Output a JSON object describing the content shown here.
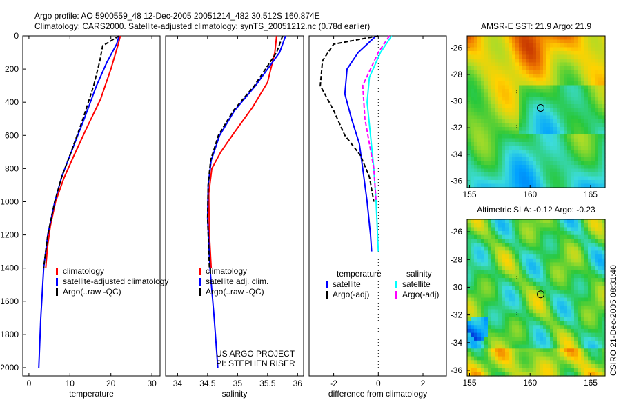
{
  "title": {
    "line1": "Argo profile: AO 5900559_48 12-Dec-2005 20051214_482 30.512S 160.874E",
    "line2": "Climatology: CARS2000. Satellite-adjusted climatology: synTS_20051212.nc (0.78d earlier)"
  },
  "side_stamp": "CSIRO 21-Dec-2005 08:31:40",
  "project_note": {
    "line1": "US ARGO PROJECT",
    "line2": "PI: STEPHEN RISER"
  },
  "colors": {
    "climatology": "#ff0000",
    "satellite": "#0000ff",
    "argo": "#000000",
    "sal_satellite": "#00ffff",
    "sal_argo": "#ff00ff"
  },
  "chart_data": [
    {
      "type": "line",
      "id": "temperature",
      "xlabel": "temperature",
      "ylabel": "",
      "xlim": [
        -1.5,
        32
      ],
      "ylim": [
        2050,
        0
      ],
      "xticks": [
        0,
        10,
        20,
        30
      ],
      "yticks": [
        0,
        200,
        400,
        600,
        800,
        1000,
        1200,
        1400,
        1600,
        1800,
        2000
      ],
      "legend": [
        "climatology",
        "satellite-adjusted climatology",
        "Argo(..raw -QC)"
      ],
      "legend_placement": "bottom-right",
      "series": [
        {
          "name": "climatology",
          "color": "#ff0000",
          "dash": false,
          "points": [
            [
              22.3,
              0
            ],
            [
              21.8,
              50
            ],
            [
              20,
              200
            ],
            [
              17.5,
              380
            ],
            [
              14,
              560
            ],
            [
              11,
              720
            ],
            [
              8.5,
              860
            ],
            [
              6.5,
              1000
            ],
            [
              5.2,
              1150
            ],
            [
              4.5,
              1280
            ],
            [
              4.1,
              1400
            ]
          ]
        },
        {
          "name": "satellite-adjusted climatology",
          "color": "#0000ff",
          "dash": false,
          "points": [
            [
              22,
              0
            ],
            [
              21.4,
              50
            ],
            [
              19,
              160
            ],
            [
              16.5,
              300
            ],
            [
              13.5,
              500
            ],
            [
              10.5,
              690
            ],
            [
              8,
              850
            ],
            [
              6.3,
              1000
            ],
            [
              4.6,
              1200
            ],
            [
              3.6,
              1400
            ],
            [
              2.9,
              1700
            ],
            [
              2.4,
              2000
            ]
          ]
        },
        {
          "name": "Argo(..raw -QC)",
          "color": "#000000",
          "dash": true,
          "points": [
            [
              22,
              0
            ],
            [
              20,
              30
            ],
            [
              18,
              60
            ],
            [
              17.3,
              150
            ],
            [
              15.8,
              300
            ],
            [
              13.2,
              500
            ],
            [
              10.3,
              700
            ],
            [
              8,
              850
            ],
            [
              6.3,
              1000
            ],
            [
              4.6,
              1200
            ],
            [
              3.6,
              1400
            ]
          ]
        }
      ]
    },
    {
      "type": "line",
      "id": "salinity",
      "xlabel": "salinity",
      "ylabel": "",
      "xlim": [
        33.8,
        36.1
      ],
      "ylim": [
        2050,
        0
      ],
      "xticks": [
        34,
        34.5,
        35,
        35.5,
        36
      ],
      "yticks": [],
      "legend": [
        "climatology",
        "satellite adj. clim.",
        "Argo(..raw -QC)"
      ],
      "legend_placement": "bottom-right",
      "series": [
        {
          "name": "climatology",
          "color": "#ff0000",
          "dash": false,
          "points": [
            [
              35.65,
              0
            ],
            [
              35.62,
              100
            ],
            [
              35.5,
              280
            ],
            [
              35.25,
              430
            ],
            [
              34.95,
              580
            ],
            [
              34.72,
              700
            ],
            [
              34.57,
              800
            ],
            [
              34.52,
              950
            ],
            [
              34.53,
              1200
            ],
            [
              34.56,
              1400
            ]
          ]
        },
        {
          "name": "satellite adj. clim.",
          "color": "#0000ff",
          "dash": false,
          "points": [
            [
              35.8,
              0
            ],
            [
              35.7,
              100
            ],
            [
              35.3,
              300
            ],
            [
              34.95,
              450
            ],
            [
              34.7,
              600
            ],
            [
              34.56,
              750
            ],
            [
              34.51,
              900
            ],
            [
              34.5,
              1100
            ],
            [
              34.54,
              1400
            ],
            [
              34.61,
              1700
            ],
            [
              34.67,
              2000
            ]
          ]
        },
        {
          "name": "Argo(..raw -QC)",
          "color": "#000000",
          "dash": true,
          "points": [
            [
              35.75,
              0
            ],
            [
              35.65,
              100
            ],
            [
              35.28,
              300
            ],
            [
              34.93,
              450
            ],
            [
              34.68,
              600
            ],
            [
              34.55,
              750
            ],
            [
              34.51,
              900
            ],
            [
              34.5,
              1100
            ],
            [
              34.53,
              1400
            ]
          ]
        }
      ]
    },
    {
      "type": "line",
      "id": "difference",
      "xlabel": "difference from climatology",
      "ylabel": "",
      "xlim": [
        -3.1,
        3.05
      ],
      "ylim": [
        2050,
        0
      ],
      "xticks": [
        -2,
        0,
        2
      ],
      "yticks": [],
      "legend_headers": [
        "temperature",
        "salinity"
      ],
      "legend": [
        "satellite",
        "Argo(-adj)",
        "satellite",
        "Argo(-adj)"
      ],
      "legend_placement": "bottom",
      "series": [
        {
          "name": "temperature satellite",
          "color": "#0000ff",
          "dash": false,
          "points": [
            [
              -0.1,
              0
            ],
            [
              -0.9,
              100
            ],
            [
              -1.4,
              200
            ],
            [
              -1.5,
              350
            ],
            [
              -1.2,
              500
            ],
            [
              -0.85,
              650
            ],
            [
              -0.7,
              800
            ],
            [
              -0.5,
              1000
            ],
            [
              -0.35,
              1200
            ],
            [
              -0.3,
              1300
            ]
          ]
        },
        {
          "name": "temperature Argo(-adj)",
          "color": "#000000",
          "dash": true,
          "points": [
            [
              0,
              0
            ],
            [
              -2,
              50
            ],
            [
              -2.5,
              150
            ],
            [
              -2.6,
              300
            ],
            [
              -2,
              450
            ],
            [
              -1.5,
              600
            ],
            [
              -0.8,
              720
            ],
            [
              -0.4,
              850
            ],
            [
              -0.2,
              1000
            ]
          ]
        },
        {
          "name": "salinity satellite",
          "color": "#00ffff",
          "dash": false,
          "points": [
            [
              0.6,
              0
            ],
            [
              0.1,
              100
            ],
            [
              -0.4,
              250
            ],
            [
              -0.5,
              400
            ],
            [
              -0.35,
              600
            ],
            [
              -0.2,
              800
            ],
            [
              -0.1,
              1000
            ],
            [
              0,
              1300
            ]
          ]
        },
        {
          "name": "salinity Argo(-adj)",
          "color": "#ff00ff",
          "dash": true,
          "points": [
            [
              0.5,
              0
            ],
            [
              0,
              100
            ],
            [
              -0.7,
              300
            ],
            [
              -0.6,
              500
            ],
            [
              -0.4,
              650
            ],
            [
              -0.2,
              800
            ],
            [
              -0.1,
              1000
            ]
          ]
        }
      ]
    },
    {
      "type": "heatmap",
      "id": "sst-map",
      "title": "AMSR-E SST: 21.9 Argo: 21.9",
      "xlim": [
        154.8,
        166.2
      ],
      "ylim": [
        -36.5,
        -25.1
      ],
      "xticks": [
        155,
        160,
        165
      ],
      "yticks": [
        -26,
        -28,
        -30,
        -32,
        -34,
        -36
      ],
      "marker": [
        160.874,
        -30.512
      ]
    },
    {
      "type": "heatmap",
      "id": "sla-map",
      "title": "Altimetric SLA: -0.12 Argo: -0.23",
      "xlim": [
        154.8,
        166.2
      ],
      "ylim": [
        -36.4,
        -25.1
      ],
      "xticks": [
        155,
        160,
        165
      ],
      "yticks": [
        -26,
        -28,
        -30,
        -32,
        -34,
        -36
      ],
      "marker": [
        160.874,
        -30.512
      ]
    }
  ]
}
